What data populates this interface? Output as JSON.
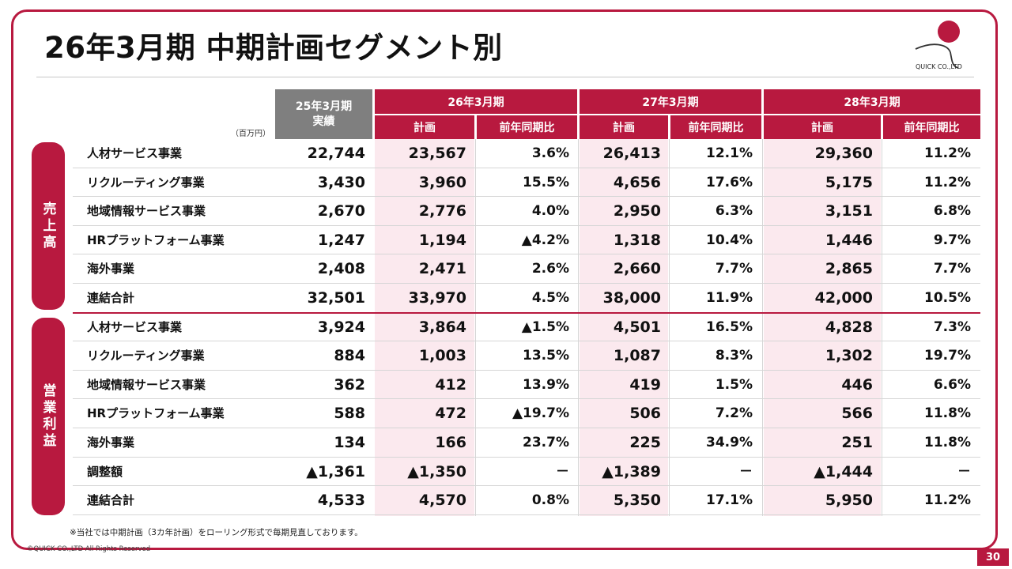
{
  "title": "26年3月期 中期計画セグメント別",
  "logo": {
    "text": "QUICK CO.,LTD"
  },
  "unit": "（百万円）",
  "headers": {
    "base_line1": "25年3月期",
    "base_line2": "実績",
    "periods": [
      "26年3月期",
      "27年3月期",
      "28年3月期"
    ],
    "plan": "計画",
    "yoy": "前年同期比"
  },
  "sections": [
    {
      "label": "売上高",
      "rows": [
        {
          "name": "人材サービス事業",
          "values": [
            "22,744",
            "23,567",
            "3.6%",
            "26,413",
            "12.1%",
            "29,360",
            "11.2%"
          ]
        },
        {
          "name": "リクルーティング事業",
          "values": [
            "3,430",
            "3,960",
            "15.5%",
            "4,656",
            "17.6%",
            "5,175",
            "11.2%"
          ]
        },
        {
          "name": "地域情報サービス事業",
          "values": [
            "2,670",
            "2,776",
            "4.0%",
            "2,950",
            "6.3%",
            "3,151",
            "6.8%"
          ]
        },
        {
          "name": "HRプラットフォーム事業",
          "values": [
            "1,247",
            "1,194",
            "▲4.2%",
            "1,318",
            "10.4%",
            "1,446",
            "9.7%"
          ]
        },
        {
          "name": "海外事業",
          "values": [
            "2,408",
            "2,471",
            "2.6%",
            "2,660",
            "7.7%",
            "2,865",
            "7.7%"
          ]
        },
        {
          "name": "連結合計",
          "values": [
            "32,501",
            "33,970",
            "4.5%",
            "38,000",
            "11.9%",
            "42,000",
            "10.5%"
          ]
        }
      ]
    },
    {
      "label": "営業利益",
      "rows": [
        {
          "name": "人材サービス事業",
          "values": [
            "3,924",
            "3,864",
            "▲1.5%",
            "4,501",
            "16.5%",
            "4,828",
            "7.3%"
          ]
        },
        {
          "name": "リクルーティング事業",
          "values": [
            "884",
            "1,003",
            "13.5%",
            "1,087",
            "8.3%",
            "1,302",
            "19.7%"
          ]
        },
        {
          "name": "地域情報サービス事業",
          "values": [
            "362",
            "412",
            "13.9%",
            "419",
            "1.5%",
            "446",
            "6.6%"
          ]
        },
        {
          "name": "HRプラットフォーム事業",
          "values": [
            "588",
            "472",
            "▲19.7%",
            "506",
            "7.2%",
            "566",
            "11.8%"
          ]
        },
        {
          "name": "海外事業",
          "values": [
            "134",
            "166",
            "23.7%",
            "225",
            "34.9%",
            "251",
            "11.8%"
          ]
        },
        {
          "name": "調整額",
          "values": [
            "▲1,361",
            "▲1,350",
            "－",
            "▲1,389",
            "－",
            "▲1,444",
            "－"
          ]
        },
        {
          "name": "連結合計",
          "values": [
            "4,533",
            "4,570",
            "0.8%",
            "5,350",
            "17.1%",
            "5,950",
            "11.2%"
          ]
        }
      ]
    }
  ],
  "footnote": "※当社では中期計画（3カ年計画）をローリング形式で毎期見直しております。",
  "copyright": "©QUICK CO.,LTD All Rights Reserved",
  "page_number": "30",
  "colors": {
    "accent": "#b8193f",
    "header_gray": "#7f7f7f",
    "plan_band": "#fbe9ee"
  }
}
